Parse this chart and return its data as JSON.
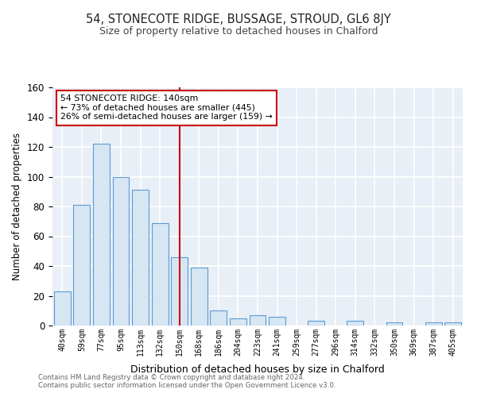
{
  "title": "54, STONECOTE RIDGE, BUSSAGE, STROUD, GL6 8JY",
  "subtitle": "Size of property relative to detached houses in Chalford",
  "xlabel": "Distribution of detached houses by size in Chalford",
  "ylabel": "Number of detached properties",
  "bar_labels": [
    "40sqm",
    "59sqm",
    "77sqm",
    "95sqm",
    "113sqm",
    "132sqm",
    "150sqm",
    "168sqm",
    "186sqm",
    "204sqm",
    "223sqm",
    "241sqm",
    "259sqm",
    "277sqm",
    "296sqm",
    "314sqm",
    "332sqm",
    "350sqm",
    "369sqm",
    "387sqm",
    "405sqm"
  ],
  "bar_values": [
    23,
    81,
    122,
    100,
    91,
    69,
    46,
    39,
    10,
    5,
    7,
    6,
    0,
    3,
    0,
    3,
    0,
    2,
    0,
    2,
    2
  ],
  "bar_color": "#d6e6f2",
  "bar_edge_color": "#5b9bd5",
  "vline_x": 6,
  "vline_color": "#cc0000",
  "annotation_text": "54 STONECOTE RIDGE: 140sqm\n← 73% of detached houses are smaller (445)\n26% of semi-detached houses are larger (159) →",
  "annotation_box_color": "#ffffff",
  "annotation_box_edge": "#cc0000",
  "ylim": [
    0,
    160
  ],
  "yticks": [
    0,
    20,
    40,
    60,
    80,
    100,
    120,
    140,
    160
  ],
  "footer_line1": "Contains HM Land Registry data © Crown copyright and database right 2024.",
  "footer_line2": "Contains public sector information licensed under the Open Government Licence v3.0.",
  "plot_background": "#e8eff7"
}
